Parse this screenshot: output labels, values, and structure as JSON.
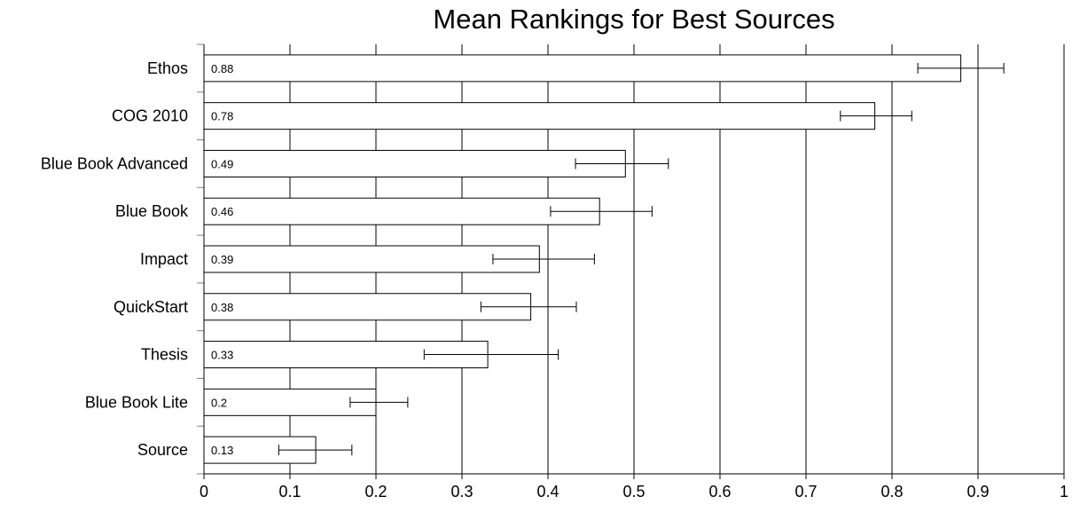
{
  "chart_data": {
    "type": "bar",
    "orientation": "horizontal",
    "title": "Mean Rankings for Best Sources",
    "xlabel": "",
    "ylabel": "",
    "xlim": [
      0,
      1
    ],
    "x_ticks": [
      "0",
      "0.1",
      "0.2",
      "0.3",
      "0.4",
      "0.5",
      "0.6",
      "0.7",
      "0.8",
      "0.9",
      "1"
    ],
    "grid": "vertical",
    "legend": "none",
    "categories": [
      "Ethos",
      "COG 2010",
      "Blue Book Advanced",
      "Blue Book",
      "Impact",
      "QuickStart",
      "Thesis",
      "Blue Book Lite",
      "Source"
    ],
    "values": [
      0.88,
      0.78,
      0.49,
      0.46,
      0.39,
      0.38,
      0.33,
      0.2,
      0.13
    ],
    "value_labels": [
      "0.88",
      "0.78",
      "0.49",
      "0.46",
      "0.39",
      "0.38",
      "0.33",
      "0.2",
      "0.13"
    ],
    "error_bars": [
      {
        "low": 0.83,
        "high": 0.93
      },
      {
        "low": 0.74,
        "high": 0.823
      },
      {
        "low": 0.432,
        "high": 0.54
      },
      {
        "low": 0.403,
        "high": 0.521
      },
      {
        "low": 0.336,
        "high": 0.454
      },
      {
        "low": 0.322,
        "high": 0.433
      },
      {
        "low": 0.256,
        "high": 0.412
      },
      {
        "low": 0.17,
        "high": 0.237
      },
      {
        "low": 0.087,
        "high": 0.172
      }
    ]
  }
}
